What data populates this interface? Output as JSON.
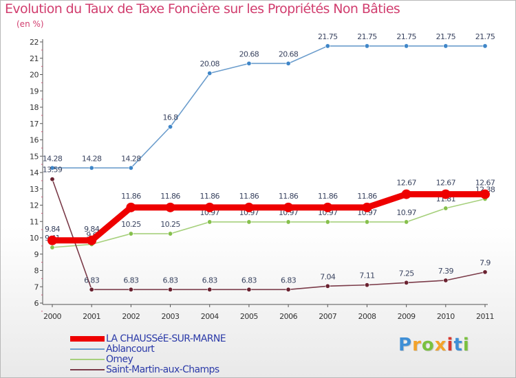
{
  "header": {
    "title": "Evolution du Taux de Taxe Foncière sur les Propriétés Non Bâties",
    "unit": "(en %)"
  },
  "brand": {
    "letters": [
      "P",
      "r",
      "o",
      "x",
      "i",
      "t",
      "i"
    ],
    "colors": [
      "#3f8fd6",
      "#f3a32a",
      "#7ac13f",
      "#f3a32a",
      "#d8382f",
      "#3f8fd6",
      "#7ac13f"
    ]
  },
  "chart_data": {
    "type": "line",
    "title": "Evolution du Taux de Taxe Foncière sur les Propriétés Non Bâties",
    "ylabel": "(en %)",
    "xlabel": "",
    "x": [
      "2000",
      "2001",
      "2002",
      "2003",
      "2004",
      "2005",
      "2006",
      "2007",
      "2008",
      "2009",
      "2010",
      "2011"
    ],
    "ylim": [
      6,
      22
    ],
    "yticks": [
      6,
      7,
      8,
      9,
      10,
      11,
      12,
      13,
      14,
      15,
      16,
      17,
      18,
      19,
      20,
      21,
      22
    ],
    "grid": false,
    "legend_position": "bottom-left",
    "series": [
      {
        "name": "Ablancourt",
        "color": "#6a9ccc",
        "marker": "#3f86c8",
        "labelColor": "#3a4460",
        "values": [
          14.28,
          14.28,
          14.28,
          16.8,
          20.08,
          20.68,
          20.68,
          21.75,
          21.75,
          21.75,
          21.75,
          21.75
        ],
        "labels": [
          "14.28",
          "14.28",
          "14.28",
          "16.8",
          "20.08",
          "20.68",
          "20.68",
          "21.75",
          "21.75",
          "21.75",
          "21.75",
          "21.75"
        ]
      },
      {
        "name": "Omey",
        "color": "#a6d07c",
        "marker": "#86c04c",
        "labelColor": "#3a4460",
        "values": [
          9.41,
          9.6,
          10.25,
          10.25,
          10.97,
          10.97,
          10.97,
          10.97,
          10.97,
          10.97,
          11.81,
          12.38
        ],
        "labels": [
          "9.41",
          "9.6",
          "10.25",
          "10.25",
          "10.97",
          "10.97",
          "10.97",
          "10.97",
          "10.97",
          "10.97",
          "11.81",
          "12.38"
        ]
      },
      {
        "name": "Saint-Martin-aux-Champs",
        "color": "#7a3a48",
        "marker": "#6a2230",
        "labelColor": "#3a4460",
        "values": [
          13.59,
          6.83,
          6.83,
          6.83,
          6.83,
          6.83,
          6.83,
          7.04,
          7.11,
          7.25,
          7.39,
          7.9
        ],
        "labels": [
          "13.59",
          "6.83",
          "6.83",
          "6.83",
          "6.83",
          "6.83",
          "6.83",
          "7.04",
          "7.11",
          "7.25",
          "7.39",
          "7.9"
        ]
      },
      {
        "name": "LA CHAUSSéE-SUR-MARNE",
        "color": "#ee0000",
        "marker": "#ee0000",
        "labelColor": "#3a4460",
        "values": [
          9.84,
          9.84,
          11.86,
          11.86,
          11.86,
          11.86,
          11.86,
          11.86,
          11.86,
          12.67,
          12.67,
          12.67
        ],
        "labels": [
          "9.84",
          "9.84",
          "11.86",
          "11.86",
          "11.86",
          "11.86",
          "11.86",
          "11.86",
          "11.86",
          "12.67",
          "12.67",
          "12.67"
        ]
      }
    ]
  },
  "legend": {
    "items": [
      {
        "label": "LA CHAUSSéE-SUR-MARNE",
        "color": "#ee0000",
        "thickness": "8"
      },
      {
        "label": "Ablancourt",
        "color": "#6a9ccc",
        "thickness": "2"
      },
      {
        "label": "Omey",
        "color": "#a6d07c",
        "thickness": "2"
      },
      {
        "label": "Saint-Martin-aux-Champs",
        "color": "#7a3a48",
        "thickness": "2"
      }
    ]
  }
}
